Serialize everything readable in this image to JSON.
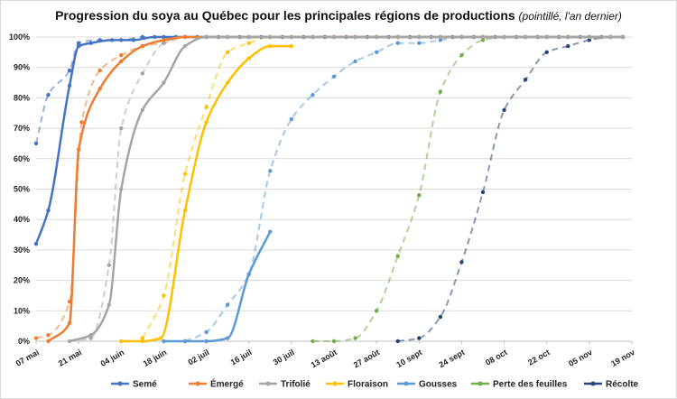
{
  "chart_data": {
    "type": "line",
    "title": "Progression du soya au Québec pour les principales régions de productions",
    "subtitle": "(pointillé, l'an dernier)",
    "xlabel": "",
    "ylabel": "",
    "x_ticks": [
      "07 mai",
      "21 mai",
      "04 juin",
      "18 juin",
      "02 juil",
      "16 juil",
      "30 juil",
      "13 août",
      "27 août",
      "10 sept",
      "24 sept",
      "08 oct",
      "22 oct",
      "05 nov",
      "19 nov"
    ],
    "x_range": [
      "2018-05-07",
      "2018-11-19"
    ],
    "y_ticks": [
      "0%",
      "10%",
      "20%",
      "30%",
      "40%",
      "50%",
      "60%",
      "70%",
      "80%",
      "90%",
      "100%"
    ],
    "ylim": [
      0,
      100
    ],
    "grid": "horizontal",
    "legend_position": "bottom",
    "current_style": "solid",
    "previous_style": "dashed",
    "series": [
      {
        "name": "Semé",
        "color": "#4472c4",
        "current": [
          [
            "05-07",
            32
          ],
          [
            "05-11",
            43
          ],
          [
            "05-18",
            84
          ],
          [
            "05-21",
            97
          ],
          [
            "05-25",
            98
          ],
          [
            "06-01",
            99
          ],
          [
            "06-08",
            99
          ],
          [
            "06-15",
            100
          ],
          [
            "06-22",
            100
          ],
          [
            "06-29",
            100
          ],
          [
            "07-06",
            100
          ],
          [
            "07-13",
            100
          ],
          [
            "07-20",
            100
          ],
          [
            "07-27",
            100
          ],
          [
            "08-03",
            100
          ],
          [
            "08-10",
            100
          ],
          [
            "08-17",
            100
          ],
          [
            "08-24",
            100
          ],
          [
            "08-31",
            100
          ],
          [
            "09-07",
            100
          ],
          [
            "09-14",
            100
          ],
          [
            "09-21",
            100
          ],
          [
            "09-28",
            100
          ],
          [
            "10-05",
            100
          ],
          [
            "10-12",
            100
          ],
          [
            "10-19",
            100
          ],
          [
            "10-26",
            100
          ],
          [
            "11-02",
            100
          ],
          [
            "11-09",
            100
          ],
          [
            "11-16",
            100
          ]
        ],
        "previous": [
          [
            "05-07",
            65
          ],
          [
            "05-11",
            81
          ],
          [
            "05-18",
            89
          ],
          [
            "05-21",
            98
          ],
          [
            "05-28",
            99
          ],
          [
            "06-04",
            99
          ],
          [
            "06-11",
            100
          ],
          [
            "06-18",
            100
          ],
          [
            "06-25",
            100
          ],
          [
            "07-02",
            100
          ],
          [
            "07-09",
            100
          ],
          [
            "07-16",
            100
          ],
          [
            "07-23",
            100
          ],
          [
            "07-30",
            100
          ],
          [
            "08-06",
            100
          ],
          [
            "08-13",
            100
          ],
          [
            "08-20",
            100
          ],
          [
            "08-27",
            100
          ],
          [
            "09-03",
            100
          ],
          [
            "09-10",
            100
          ],
          [
            "09-17",
            100
          ],
          [
            "09-24",
            100
          ],
          [
            "10-01",
            100
          ],
          [
            "10-08",
            100
          ],
          [
            "10-15",
            100
          ],
          [
            "10-22",
            100
          ],
          [
            "10-29",
            100
          ],
          [
            "11-05",
            100
          ],
          [
            "11-12",
            100
          ],
          [
            "11-16",
            100
          ]
        ]
      },
      {
        "name": "Émergé",
        "color": "#ed7d31",
        "current": [
          [
            "05-11",
            0
          ],
          [
            "05-18",
            6
          ],
          [
            "05-21",
            63
          ],
          [
            "05-28",
            83
          ],
          [
            "06-04",
            92
          ],
          [
            "06-11",
            97
          ],
          [
            "06-18",
            99
          ],
          [
            "06-25",
            100
          ],
          [
            "07-02",
            100
          ],
          [
            "07-09",
            100
          ],
          [
            "07-16",
            100
          ],
          [
            "07-23",
            100
          ],
          [
            "07-30",
            100
          ],
          [
            "08-06",
            100
          ],
          [
            "08-13",
            100
          ],
          [
            "08-20",
            100
          ],
          [
            "08-27",
            100
          ],
          [
            "09-03",
            100
          ],
          [
            "09-10",
            100
          ],
          [
            "09-17",
            100
          ],
          [
            "09-24",
            100
          ],
          [
            "10-01",
            100
          ],
          [
            "10-08",
            100
          ],
          [
            "10-15",
            100
          ],
          [
            "10-22",
            100
          ],
          [
            "10-29",
            100
          ],
          [
            "11-05",
            100
          ],
          [
            "11-12",
            100
          ],
          [
            "11-16",
            100
          ]
        ],
        "previous": [
          [
            "05-07",
            1
          ],
          [
            "05-11",
            2
          ],
          [
            "05-18",
            13
          ],
          [
            "05-22",
            72
          ],
          [
            "05-28",
            89
          ],
          [
            "06-04",
            94
          ],
          [
            "06-11",
            97
          ],
          [
            "06-18",
            98
          ],
          [
            "06-25",
            100
          ],
          [
            "07-02",
            100
          ],
          [
            "07-09",
            100
          ],
          [
            "07-16",
            100
          ],
          [
            "07-23",
            100
          ],
          [
            "07-30",
            100
          ],
          [
            "08-06",
            100
          ],
          [
            "08-13",
            100
          ],
          [
            "08-20",
            100
          ],
          [
            "08-27",
            100
          ],
          [
            "09-03",
            100
          ],
          [
            "09-10",
            100
          ],
          [
            "09-17",
            100
          ],
          [
            "09-24",
            100
          ],
          [
            "10-01",
            100
          ],
          [
            "10-08",
            100
          ],
          [
            "10-15",
            100
          ],
          [
            "10-22",
            100
          ],
          [
            "10-29",
            100
          ],
          [
            "11-05",
            100
          ],
          [
            "11-12",
            100
          ],
          [
            "11-16",
            100
          ]
        ]
      },
      {
        "name": "Trifolié",
        "color": "#a5a5a5",
        "current": [
          [
            "05-18",
            0
          ],
          [
            "05-25",
            2
          ],
          [
            "05-31",
            12
          ],
          [
            "06-04",
            50
          ],
          [
            "06-11",
            76
          ],
          [
            "06-18",
            85
          ],
          [
            "06-25",
            97
          ],
          [
            "07-02",
            100
          ],
          [
            "07-09",
            100
          ],
          [
            "07-16",
            100
          ],
          [
            "07-23",
            100
          ],
          [
            "07-30",
            100
          ],
          [
            "08-06",
            100
          ],
          [
            "08-13",
            100
          ],
          [
            "08-20",
            100
          ],
          [
            "08-27",
            100
          ],
          [
            "09-03",
            100
          ],
          [
            "09-10",
            100
          ],
          [
            "09-17",
            100
          ],
          [
            "09-24",
            100
          ],
          [
            "10-01",
            100
          ],
          [
            "10-08",
            100
          ],
          [
            "10-15",
            100
          ],
          [
            "10-22",
            100
          ],
          [
            "10-29",
            100
          ],
          [
            "11-05",
            100
          ],
          [
            "11-12",
            100
          ],
          [
            "11-16",
            100
          ]
        ],
        "previous": [
          [
            "05-18",
            0
          ],
          [
            "05-25",
            1
          ],
          [
            "05-31",
            25
          ],
          [
            "06-04",
            70
          ],
          [
            "06-11",
            88
          ],
          [
            "06-18",
            98
          ],
          [
            "06-25",
            100
          ],
          [
            "07-02",
            100
          ],
          [
            "07-09",
            100
          ],
          [
            "07-16",
            100
          ],
          [
            "07-23",
            100
          ],
          [
            "07-30",
            100
          ],
          [
            "08-06",
            100
          ],
          [
            "08-13",
            100
          ],
          [
            "08-20",
            100
          ],
          [
            "08-27",
            100
          ],
          [
            "09-03",
            100
          ],
          [
            "09-10",
            100
          ],
          [
            "09-17",
            100
          ],
          [
            "09-24",
            100
          ],
          [
            "10-01",
            100
          ],
          [
            "10-08",
            100
          ],
          [
            "10-15",
            100
          ],
          [
            "10-22",
            100
          ],
          [
            "10-29",
            100
          ],
          [
            "11-05",
            100
          ],
          [
            "11-12",
            100
          ],
          [
            "11-16",
            100
          ]
        ]
      },
      {
        "name": "Floraison",
        "color": "#ffc000",
        "current": [
          [
            "06-04",
            0
          ],
          [
            "06-11",
            0
          ],
          [
            "06-17",
            1
          ],
          [
            "06-25",
            43
          ],
          [
            "07-02",
            72
          ],
          [
            "07-09",
            85
          ],
          [
            "07-16",
            93
          ],
          [
            "07-23",
            97
          ],
          [
            "07-30",
            97
          ]
        ],
        "previous": [
          [
            "06-11",
            1
          ],
          [
            "06-18",
            15
          ],
          [
            "06-25",
            55
          ],
          [
            "07-02",
            77
          ],
          [
            "07-09",
            95
          ],
          [
            "07-16",
            98
          ],
          [
            "07-23",
            100
          ],
          [
            "07-30",
            100
          ],
          [
            "08-06",
            100
          ],
          [
            "08-13",
            100
          ],
          [
            "08-20",
            100
          ],
          [
            "08-27",
            100
          ],
          [
            "09-03",
            100
          ],
          [
            "09-10",
            100
          ],
          [
            "09-17",
            100
          ],
          [
            "09-24",
            100
          ],
          [
            "10-01",
            100
          ],
          [
            "10-08",
            100
          ],
          [
            "10-15",
            100
          ],
          [
            "10-22",
            100
          ],
          [
            "10-29",
            100
          ],
          [
            "11-05",
            100
          ],
          [
            "11-12",
            100
          ],
          [
            "11-16",
            100
          ]
        ]
      },
      {
        "name": "Gousses",
        "color": "#5b9bd5",
        "current": [
          [
            "06-18",
            0
          ],
          [
            "06-25",
            0
          ],
          [
            "07-02",
            0
          ],
          [
            "07-09",
            1
          ],
          [
            "07-16",
            22
          ],
          [
            "07-23",
            36
          ]
        ],
        "previous": [
          [
            "06-25",
            0
          ],
          [
            "07-02",
            3
          ],
          [
            "07-09",
            12
          ],
          [
            "07-16",
            22
          ],
          [
            "07-23",
            56
          ],
          [
            "07-30",
            73
          ],
          [
            "08-06",
            81
          ],
          [
            "08-13",
            87
          ],
          [
            "08-20",
            92
          ],
          [
            "08-27",
            95
          ],
          [
            "09-03",
            98
          ],
          [
            "09-10",
            98
          ],
          [
            "09-17",
            99
          ],
          [
            "09-24",
            100
          ],
          [
            "10-01",
            100
          ],
          [
            "10-08",
            100
          ],
          [
            "10-15",
            100
          ],
          [
            "10-22",
            100
          ],
          [
            "10-29",
            100
          ],
          [
            "11-05",
            100
          ],
          [
            "11-12",
            100
          ],
          [
            "11-16",
            100
          ]
        ]
      },
      {
        "name": "Perte des feuilles",
        "color": "#70ad47",
        "current": [],
        "previous": [
          [
            "08-06",
            0
          ],
          [
            "08-13",
            0
          ],
          [
            "08-20",
            1
          ],
          [
            "08-27",
            10
          ],
          [
            "09-03",
            28
          ],
          [
            "09-10",
            48
          ],
          [
            "09-17",
            82
          ],
          [
            "09-24",
            94
          ],
          [
            "10-01",
            99
          ],
          [
            "10-08",
            100
          ],
          [
            "10-15",
            100
          ],
          [
            "10-22",
            100
          ],
          [
            "10-29",
            100
          ],
          [
            "11-05",
            100
          ],
          [
            "11-12",
            100
          ],
          [
            "11-16",
            100
          ]
        ]
      },
      {
        "name": "Récolte",
        "color": "#264478",
        "current": [],
        "previous": [
          [
            "09-03",
            0
          ],
          [
            "09-10",
            1
          ],
          [
            "09-17",
            8
          ],
          [
            "09-24",
            26
          ],
          [
            "10-01",
            49
          ],
          [
            "10-08",
            76
          ],
          [
            "10-15",
            86
          ],
          [
            "10-22",
            95
          ],
          [
            "10-29",
            97
          ],
          [
            "11-05",
            99
          ],
          [
            "11-12",
            100
          ],
          [
            "11-16",
            100
          ]
        ]
      }
    ]
  }
}
